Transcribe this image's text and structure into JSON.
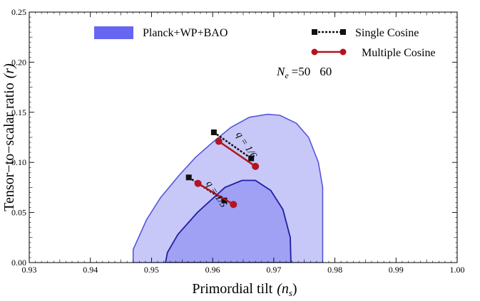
{
  "chart_data": {
    "type": "area",
    "xlabel": "Primordial tilt",
    "xlabel_symbol": "(n",
    "xlabel_sub": "s",
    "xlabel_close": ")",
    "ylabel": "Tensor−to−scalar ratio",
    "ylabel_symbol": "(r)",
    "xlim": [
      0.93,
      1.0
    ],
    "ylim": [
      0.0,
      0.25
    ],
    "x_ticks": [
      "0.93",
      "0.94",
      "0.95",
      "0.96",
      "0.97",
      "0.98",
      "0.99",
      "1.00"
    ],
    "y_ticks": [
      "0.00",
      "0.05",
      "0.10",
      "0.15",
      "0.20",
      "0.25"
    ],
    "colors": {
      "outer_fill": "#c8c8f8",
      "inner_fill": "#a0a0f4",
      "outer_edge": "#5555e0",
      "inner_edge": "#1f1fa0",
      "legend_swatch": "#6666f2",
      "single": "#111111",
      "multiple": "#b3141f"
    },
    "legend": {
      "region_label": "Planck+WP+BAO",
      "single_label": "Single Cosine",
      "multiple_label": "Multiple Cosine"
    },
    "ne_annotation": {
      "symbol": "N",
      "sub": "e",
      "eq_part": "=50",
      "second": "60"
    },
    "contours": {
      "outer_95": [
        [
          0.947,
          0.0
        ],
        [
          0.947,
          0.013
        ],
        [
          0.9492,
          0.043
        ],
        [
          0.9515,
          0.065
        ],
        [
          0.9545,
          0.087
        ],
        [
          0.9572,
          0.105
        ],
        [
          0.96,
          0.12
        ],
        [
          0.963,
          0.135
        ],
        [
          0.966,
          0.145
        ],
        [
          0.969,
          0.148
        ],
        [
          0.971,
          0.147
        ],
        [
          0.9737,
          0.139
        ],
        [
          0.9757,
          0.125
        ],
        [
          0.9773,
          0.1
        ],
        [
          0.978,
          0.075
        ],
        [
          0.978,
          0.05
        ],
        [
          0.978,
          0.0
        ],
        [
          0.947,
          0.0
        ]
      ],
      "inner_68": [
        [
          0.9523,
          0.0
        ],
        [
          0.9526,
          0.01
        ],
        [
          0.9543,
          0.028
        ],
        [
          0.9575,
          0.05
        ],
        [
          0.962,
          0.075
        ],
        [
          0.9648,
          0.082
        ],
        [
          0.967,
          0.082
        ],
        [
          0.9695,
          0.072
        ],
        [
          0.9715,
          0.053
        ],
        [
          0.9727,
          0.025
        ],
        [
          0.9728,
          0.0
        ],
        [
          0.9523,
          0.0
        ]
      ]
    },
    "series": [
      {
        "name": "Single Cosine",
        "groups": [
          {
            "label": "q = 1/6",
            "points": [
              [
                0.9602,
                0.13
              ],
              [
                0.9663,
                0.104
              ]
            ]
          },
          {
            "label": "q = 1/5",
            "points": [
              [
                0.9561,
                0.085
              ],
              [
                0.9619,
                0.062
              ]
            ]
          }
        ]
      },
      {
        "name": "Multiple Cosine",
        "groups": [
          {
            "label": "q = 1/6",
            "points": [
              [
                0.961,
                0.121
              ],
              [
                0.967,
                0.096
              ]
            ]
          },
          {
            "label": "q = 1/5",
            "points": [
              [
                0.9576,
                0.079
              ],
              [
                0.9634,
                0.058
              ]
            ]
          }
        ]
      }
    ],
    "group_labels": [
      "q = 1/6",
      "q = 1/5"
    ]
  }
}
